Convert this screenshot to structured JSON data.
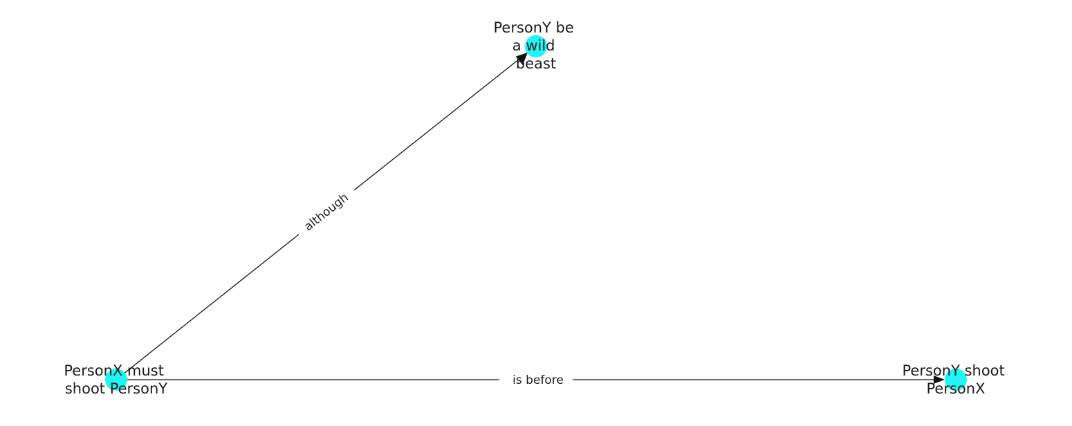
{
  "colors": {
    "node_fill": "#1ff5f5",
    "edge": "#111111",
    "text": "#1a1a1a",
    "background": "#ffffff"
  },
  "nodes": [
    {
      "id": "n1",
      "label_lines": [
        "PersonY be",
        "a wild",
        "beast"
      ]
    },
    {
      "id": "n2",
      "label_lines": [
        "PersonX must",
        "shoot PersonY"
      ]
    },
    {
      "id": "n3",
      "label_lines": [
        "PersonY shoot",
        "PersonX"
      ]
    }
  ],
  "edges": [
    {
      "id": "e1",
      "source": "n2",
      "target": "n1",
      "label": "although"
    },
    {
      "id": "e2",
      "source": "n2",
      "target": "n3",
      "label": "is before"
    }
  ]
}
